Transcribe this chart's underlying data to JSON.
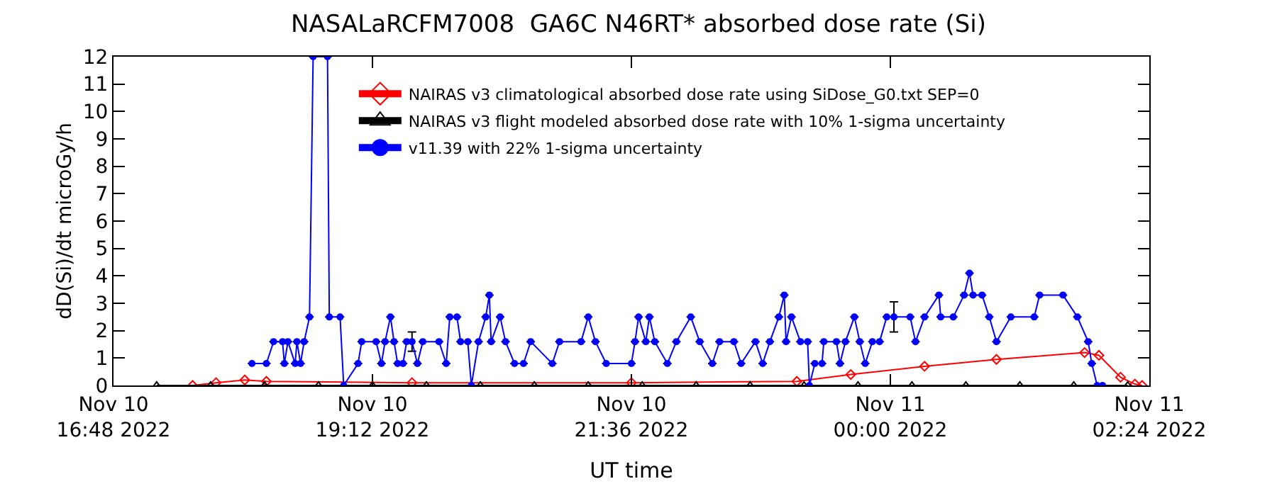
{
  "chart_data": {
    "type": "line",
    "title": "NASALaRCFM7008  GA6C N46RT* absorbed dose rate (Si)",
    "xlabel": "UT time",
    "ylabel": "dD(Si)/dt microGy/h",
    "xlim": [
      "2022-11-10T16:48",
      "2022-11-11T02:24"
    ],
    "xticks": [
      {
        "value": "2022-11-10T16:48",
        "label": "Nov 10\n16:48 2022"
      },
      {
        "value": "2022-11-10T19:12",
        "label": "Nov 10\n19:12 2022"
      },
      {
        "value": "2022-11-10T21:36",
        "label": "Nov 10\n21:36 2022"
      },
      {
        "value": "2022-11-11T00:00",
        "label": "Nov 11\n00:00 2022"
      },
      {
        "value": "2022-11-11T02:24",
        "label": "Nov 11\n02:24 2022"
      }
    ],
    "ylim": [
      0,
      12
    ],
    "yticks": [
      0,
      1,
      2,
      3,
      4,
      5,
      6,
      7,
      8,
      9,
      10,
      11,
      12
    ],
    "legend": "top left",
    "series": [
      {
        "name": "NAIRAS v3 climatological absorbed dose rate using SiDose_G0.txt SEP=0",
        "color": "#ff0000",
        "marker": "diamond",
        "x": [
          "2022-11-10T17:32",
          "2022-11-10T17:45",
          "2022-11-10T18:01",
          "2022-11-10T18:13",
          "2022-11-10T19:34",
          "2022-11-10T21:36",
          "2022-11-10T23:08",
          "2022-11-10T23:38",
          "2022-11-11T00:19",
          "2022-11-11T00:59",
          "2022-11-11T01:48",
          "2022-11-11T01:56",
          "2022-11-11T02:08",
          "2022-11-11T02:16",
          "2022-11-11T02:20"
        ],
        "values": [
          0,
          0.1,
          0.2,
          0.15,
          0.1,
          0.1,
          0.15,
          0.4,
          0.7,
          0.95,
          1.2,
          1.1,
          0.3,
          0.05,
          0
        ]
      },
      {
        "name": "NAIRAS v3 flight modeled absorbed dose rate with 10% 1-sigma uncertainty",
        "color": "#000000",
        "marker": "triangle",
        "x": [
          "2022-11-10T17:12",
          "2022-11-10T17:42",
          "2022-11-10T18:12",
          "2022-11-10T18:42",
          "2022-11-10T19:12",
          "2022-11-10T19:42",
          "2022-11-10T20:12",
          "2022-11-10T20:42",
          "2022-11-10T21:12",
          "2022-11-10T21:42",
          "2022-11-10T22:12",
          "2022-11-10T22:42",
          "2022-11-10T23:12",
          "2022-11-10T23:42",
          "2022-11-11T00:12",
          "2022-11-11T00:42",
          "2022-11-11T01:12",
          "2022-11-11T01:42",
          "2022-11-11T02:12"
        ],
        "values": [
          0,
          0,
          0,
          0,
          0,
          0,
          0,
          0,
          0,
          0,
          0,
          0,
          0,
          0,
          0,
          0,
          0,
          0,
          0
        ]
      },
      {
        "name": "v11.39 with 22% 1-sigma uncertainty",
        "color": "#0000ff",
        "marker": "circle",
        "x": [
          "2022-11-10T18:05",
          "2022-11-10T18:13",
          "2022-11-10T18:17",
          "2022-11-10T18:22",
          "2022-11-10T18:23",
          "2022-11-10T18:25",
          "2022-11-10T18:29",
          "2022-11-10T18:30",
          "2022-11-10T18:32",
          "2022-11-10T18:34",
          "2022-11-10T18:37",
          "2022-11-10T18:39",
          "2022-11-10T18:47",
          "2022-11-10T18:48",
          "2022-11-10T18:54",
          "2022-11-10T18:56",
          "2022-11-10T19:04",
          "2022-11-10T19:06",
          "2022-11-10T19:14",
          "2022-11-10T19:17",
          "2022-11-10T19:19",
          "2022-11-10T19:22",
          "2022-11-10T19:24",
          "2022-11-10T19:26",
          "2022-11-10T19:29",
          "2022-11-10T19:31",
          "2022-11-10T19:34",
          "2022-11-10T19:37",
          "2022-11-10T19:40",
          "2022-11-10T19:49",
          "2022-11-10T19:53",
          "2022-11-10T19:55",
          "2022-11-10T19:59",
          "2022-11-10T20:01",
          "2022-11-10T20:05",
          "2022-11-10T20:07",
          "2022-11-10T20:11",
          "2022-11-10T20:15",
          "2022-11-10T20:17",
          "2022-11-10T20:18",
          "2022-11-10T20:23",
          "2022-11-10T20:26",
          "2022-11-10T20:31",
          "2022-11-10T20:36",
          "2022-11-10T20:40",
          "2022-11-10T20:52",
          "2022-11-10T20:56",
          "2022-11-10T21:08",
          "2022-11-10T21:12",
          "2022-11-10T21:16",
          "2022-11-10T21:22",
          "2022-11-10T21:36",
          "2022-11-10T21:38",
          "2022-11-10T21:40",
          "2022-11-10T21:44",
          "2022-11-10T21:46",
          "2022-11-10T21:49",
          "2022-11-10T21:56",
          "2022-11-10T22:01",
          "2022-11-10T22:09",
          "2022-11-10T22:14",
          "2022-11-10T22:21",
          "2022-11-10T22:25",
          "2022-11-10T22:33",
          "2022-11-10T22:37",
          "2022-11-10T22:45",
          "2022-11-10T22:49",
          "2022-11-10T22:53",
          "2022-11-10T22:58",
          "2022-11-10T23:01",
          "2022-11-10T23:02",
          "2022-11-10T23:05",
          "2022-11-10T23:10",
          "2022-11-10T23:14",
          "2022-11-10T23:15",
          "2022-11-10T23:18",
          "2022-11-10T23:22",
          "2022-11-10T23:23",
          "2022-11-10T23:30",
          "2022-11-10T23:32",
          "2022-11-10T23:35",
          "2022-11-10T23:40",
          "2022-11-10T23:43",
          "2022-11-10T23:46",
          "2022-11-10T23:50",
          "2022-11-10T23:54",
          "2022-11-10T23:58",
          "2022-11-11T00:02",
          "2022-11-11T00:11",
          "2022-11-11T00:14",
          "2022-11-11T00:19",
          "2022-11-11T00:27",
          "2022-11-11T00:28",
          "2022-11-11T00:35",
          "2022-11-11T00:41",
          "2022-11-11T00:44",
          "2022-11-11T00:46",
          "2022-11-11T00:51",
          "2022-11-11T00:55",
          "2022-11-11T00:59",
          "2022-11-11T01:07",
          "2022-11-11T01:20",
          "2022-11-11T01:23",
          "2022-11-11T01:36",
          "2022-11-11T01:44",
          "2022-11-11T01:50",
          "2022-11-11T01:52",
          "2022-11-11T01:55",
          "2022-11-11T01:58"
        ],
        "values": [
          0.8,
          0.8,
          1.6,
          1.6,
          0.8,
          1.6,
          0.8,
          1.6,
          0.8,
          1.6,
          2.5,
          12,
          12,
          2.5,
          2.5,
          0,
          0.8,
          1.6,
          1.6,
          0.8,
          1.6,
          2.5,
          1.6,
          0.8,
          0.8,
          1.6,
          1.6,
          0.8,
          1.6,
          1.6,
          0.8,
          2.5,
          2.5,
          1.6,
          1.6,
          0,
          1.6,
          2.5,
          3.3,
          1.6,
          2.5,
          1.6,
          0.8,
          0.8,
          1.6,
          0.8,
          1.6,
          1.6,
          2.5,
          1.6,
          0.8,
          0.8,
          1.6,
          2.5,
          1.6,
          2.5,
          1.6,
          0.8,
          1.6,
          2.5,
          1.6,
          0.8,
          1.6,
          1.6,
          0.8,
          1.6,
          0.8,
          1.6,
          2.5,
          3.3,
          1.6,
          2.5,
          1.6,
          1.6,
          0,
          0.8,
          0.8,
          1.6,
          1.6,
          0.8,
          1.6,
          2.5,
          1.6,
          0.8,
          1.6,
          1.6,
          2.5,
          2.5,
          2.5,
          1.6,
          2.5,
          3.3,
          2.5,
          2.5,
          3.3,
          4.1,
          3.3,
          3.3,
          2.5,
          1.6,
          2.5,
          2.5,
          3.3,
          3.3,
          2.5,
          1.6,
          0.8,
          0,
          0
        ],
        "errors": [
          null,
          null,
          null,
          null,
          null,
          null,
          null,
          null,
          null,
          null,
          null,
          null,
          null,
          null,
          null,
          null,
          null,
          null,
          null,
          null,
          null,
          null,
          null,
          null,
          null,
          null,
          0.35,
          null,
          null,
          null,
          null,
          null,
          null,
          null,
          null,
          null,
          null,
          null,
          null,
          null,
          null,
          null,
          null,
          null,
          null,
          null,
          null,
          null,
          null,
          null,
          null,
          null,
          null,
          null,
          null,
          null,
          null,
          null,
          null,
          null,
          null,
          null,
          null,
          null,
          null,
          null,
          null,
          null,
          null,
          null,
          null,
          null,
          null,
          null,
          null,
          null,
          null,
          null,
          null,
          null,
          null,
          null,
          null,
          null,
          null,
          null,
          null,
          0.55,
          null,
          null,
          null,
          null,
          null,
          null,
          null,
          null,
          null,
          null,
          null,
          null,
          null,
          null,
          null,
          null,
          null,
          null,
          null,
          null,
          null
        ]
      }
    ]
  }
}
